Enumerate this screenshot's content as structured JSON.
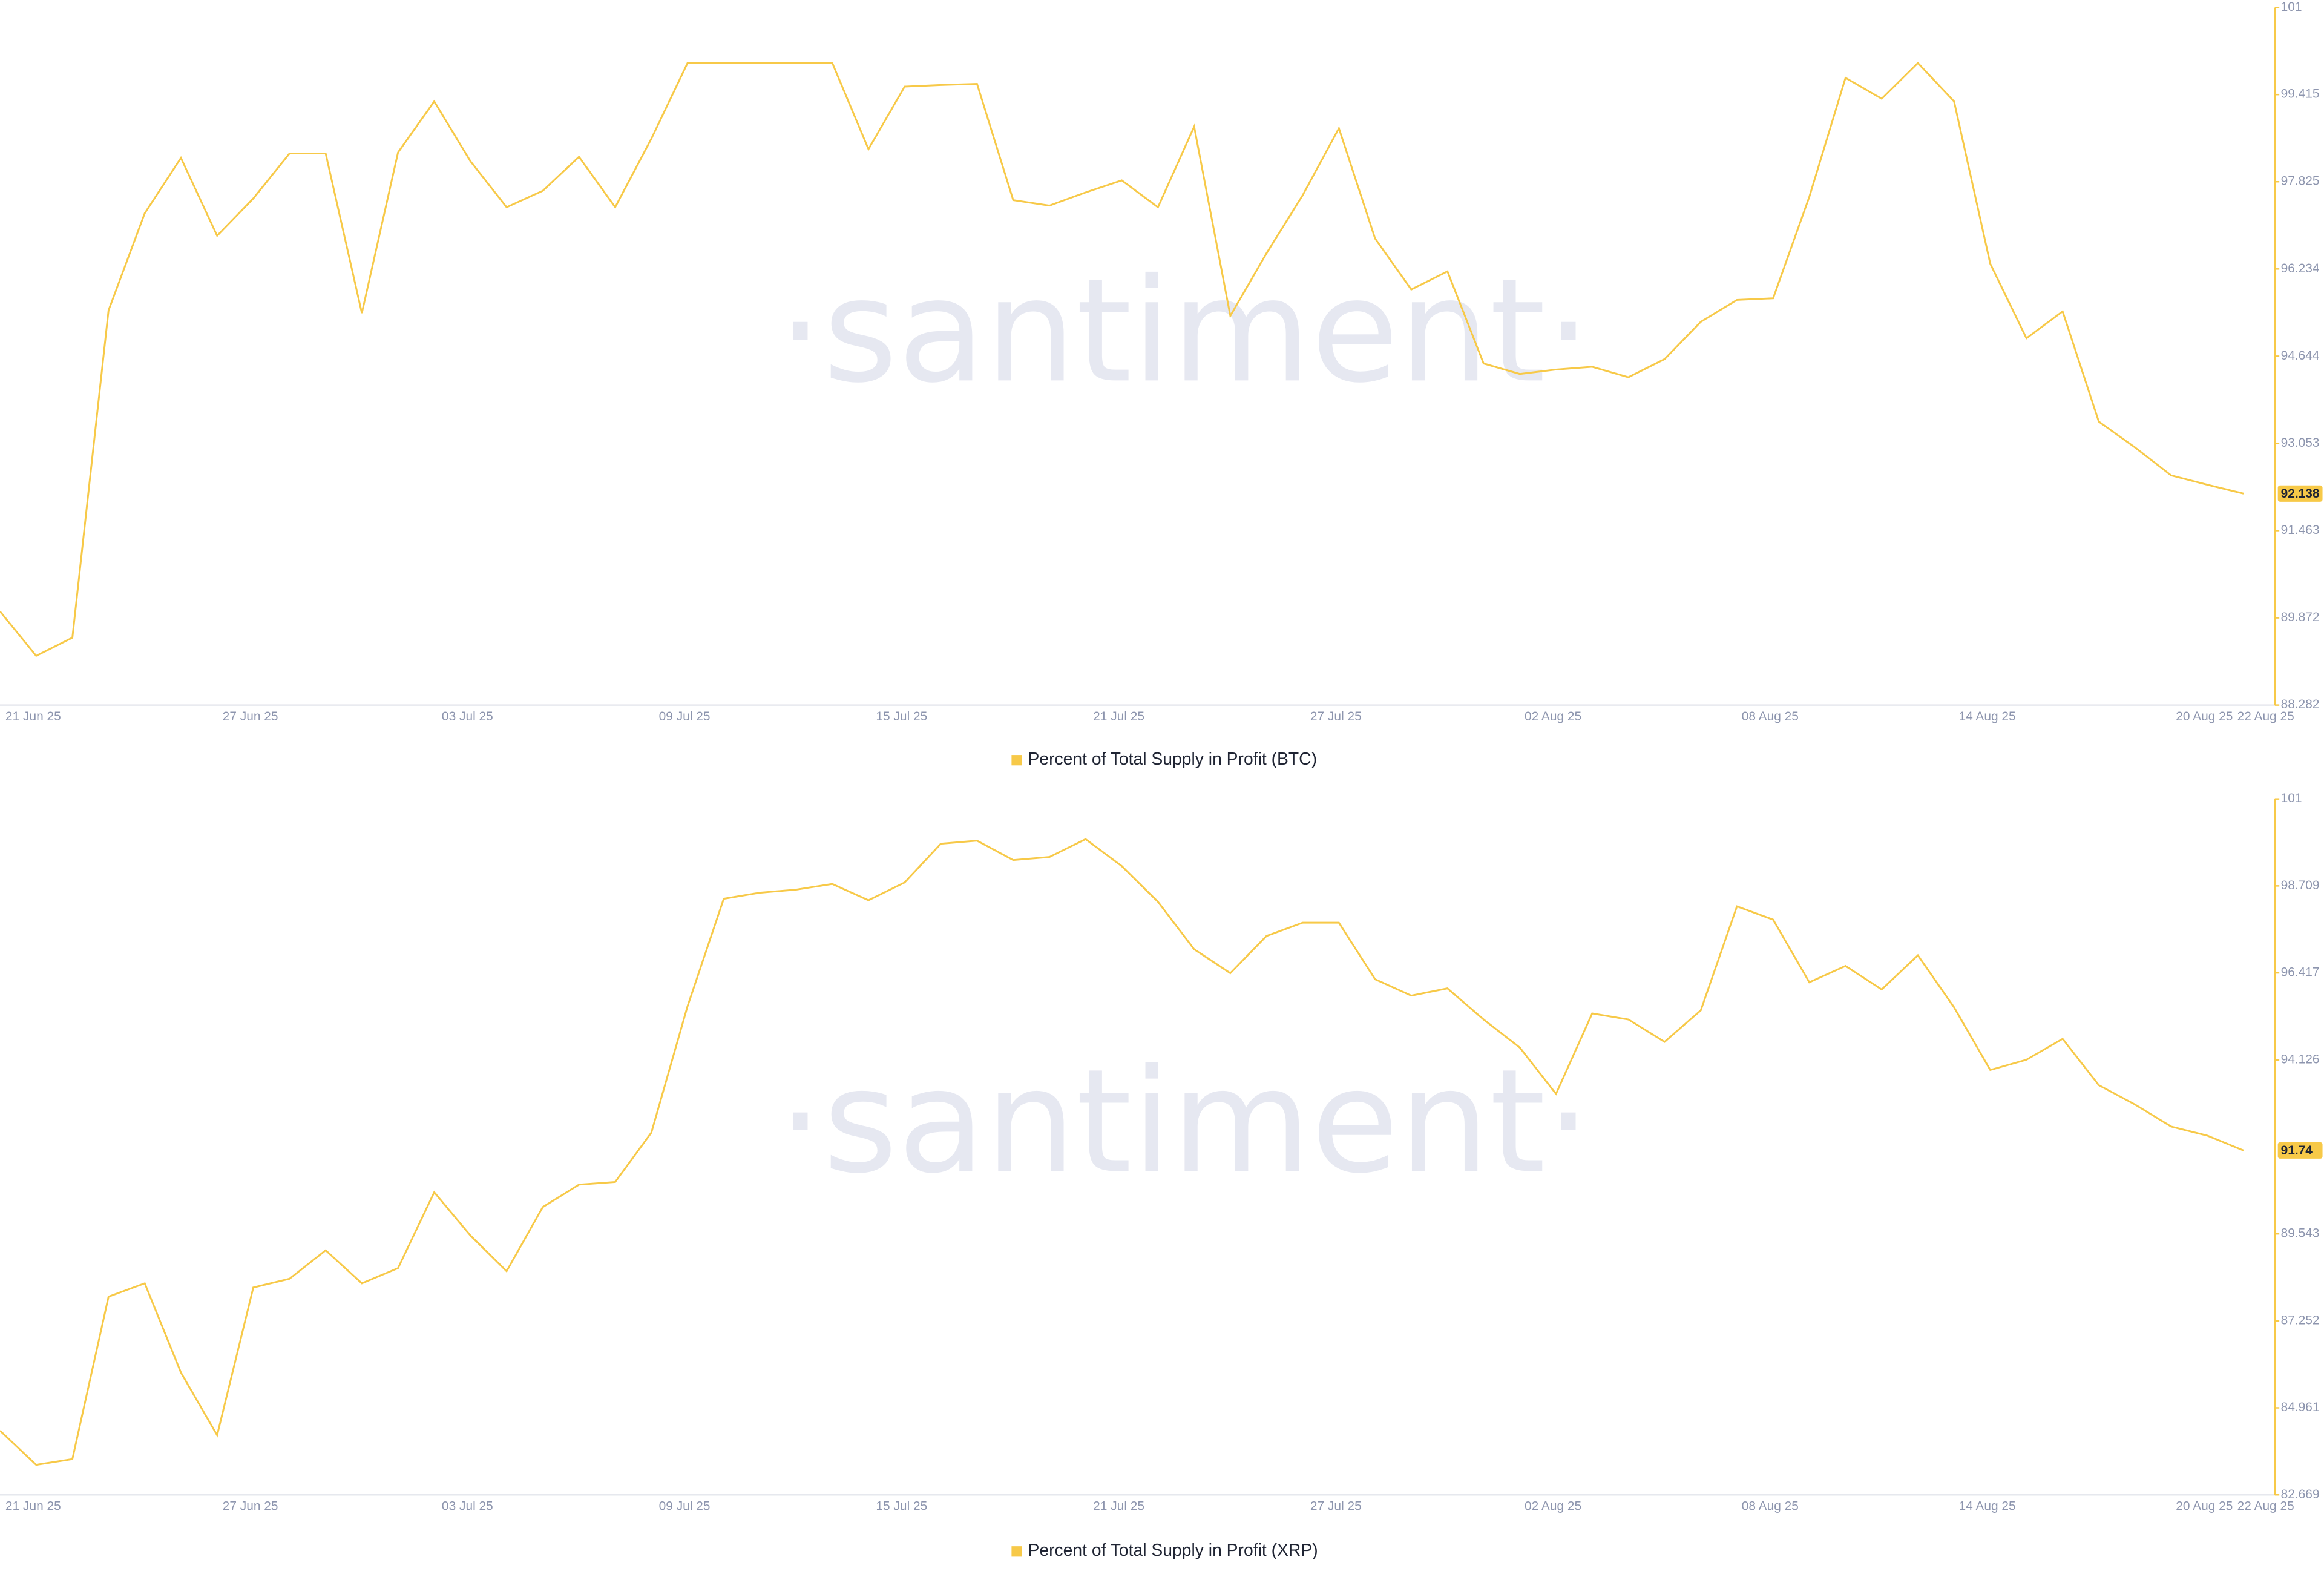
{
  "chart_data": [
    {
      "type": "line",
      "watermark": "·santiment·",
      "x": [
        "2025-06-20",
        "2025-06-21",
        "2025-06-22",
        "2025-06-23",
        "2025-06-24",
        "2025-06-25",
        "2025-06-26",
        "2025-06-27",
        "2025-06-28",
        "2025-06-29",
        "2025-06-30",
        "2025-07-01",
        "2025-07-02",
        "2025-07-03",
        "2025-07-04",
        "2025-07-05",
        "2025-07-06",
        "2025-07-07",
        "2025-07-08",
        "2025-07-09",
        "2025-07-10",
        "2025-07-11",
        "2025-07-12",
        "2025-07-13",
        "2025-07-14",
        "2025-07-15",
        "2025-07-16",
        "2025-07-17",
        "2025-07-18",
        "2025-07-19",
        "2025-07-20",
        "2025-07-21",
        "2025-07-22",
        "2025-07-23",
        "2025-07-24",
        "2025-07-25",
        "2025-07-26",
        "2025-07-27",
        "2025-07-28",
        "2025-07-29",
        "2025-07-30",
        "2025-07-31",
        "2025-08-01",
        "2025-08-02",
        "2025-08-03",
        "2025-08-04",
        "2025-08-05",
        "2025-08-06",
        "2025-08-07",
        "2025-08-08",
        "2025-08-09",
        "2025-08-10",
        "2025-08-11",
        "2025-08-12",
        "2025-08-13",
        "2025-08-14",
        "2025-08-15",
        "2025-08-16",
        "2025-08-17",
        "2025-08-18",
        "2025-08-19",
        "2025-08-20",
        "2025-08-21"
      ],
      "series": [
        {
          "name": "Percent of Total Supply in Profit (BTC)",
          "color": "#f7c948",
          "values": [
            89.99,
            89.18,
            89.51,
            95.48,
            97.25,
            98.26,
            96.84,
            97.52,
            98.34,
            98.34,
            95.43,
            98.36,
            99.29,
            98.2,
            97.36,
            97.66,
            98.28,
            97.36,
            98.61,
            99.99,
            99.99,
            99.99,
            99.99,
            99.99,
            98.42,
            99.56,
            99.59,
            99.61,
            97.49,
            97.39,
            97.63,
            97.85,
            97.36,
            98.83,
            95.38,
            96.52,
            97.58,
            98.8,
            96.79,
            95.86,
            96.19,
            94.51,
            94.32,
            94.4,
            94.45,
            94.26,
            94.59,
            95.27,
            95.67,
            95.7,
            97.55,
            99.72,
            99.34,
            99.99,
            99.29,
            96.33,
            94.97,
            95.46,
            93.45,
            92.98,
            92.47,
            92.3,
            92.138
          ]
        }
      ],
      "ylim": [
        88.282,
        101
      ],
      "yticks": [
        88.282,
        89.872,
        91.463,
        93.053,
        94.644,
        96.234,
        97.825,
        99.415,
        101
      ],
      "xticks": [
        {
          "value": "2025-06-21",
          "label": "21 Jun 25"
        },
        {
          "value": "2025-06-27",
          "label": "27 Jun 25"
        },
        {
          "value": "2025-07-03",
          "label": "03 Jul 25"
        },
        {
          "value": "2025-07-09",
          "label": "09 Jul 25"
        },
        {
          "value": "2025-07-15",
          "label": "15 Jul 25"
        },
        {
          "value": "2025-07-21",
          "label": "21 Jul 25"
        },
        {
          "value": "2025-07-27",
          "label": "27 Jul 25"
        },
        {
          "value": "2025-08-02",
          "label": "02 Aug 25"
        },
        {
          "value": "2025-08-08",
          "label": "08 Aug 25"
        },
        {
          "value": "2025-08-14",
          "label": "14 Aug 25"
        },
        {
          "value": "2025-08-20",
          "label": "20 Aug 25"
        },
        {
          "value": "2025-08-22",
          "label": "22 Aug 25"
        }
      ]
    },
    {
      "type": "line",
      "watermark": "·santiment·",
      "x": [
        "2025-06-20",
        "2025-06-21",
        "2025-06-22",
        "2025-06-23",
        "2025-06-24",
        "2025-06-25",
        "2025-06-26",
        "2025-06-27",
        "2025-06-28",
        "2025-06-29",
        "2025-06-30",
        "2025-07-01",
        "2025-07-02",
        "2025-07-03",
        "2025-07-04",
        "2025-07-05",
        "2025-07-06",
        "2025-07-07",
        "2025-07-08",
        "2025-07-09",
        "2025-07-10",
        "2025-07-11",
        "2025-07-12",
        "2025-07-13",
        "2025-07-14",
        "2025-07-15",
        "2025-07-16",
        "2025-07-17",
        "2025-07-18",
        "2025-07-19",
        "2025-07-20",
        "2025-07-21",
        "2025-07-22",
        "2025-07-23",
        "2025-07-24",
        "2025-07-25",
        "2025-07-26",
        "2025-07-27",
        "2025-07-28",
        "2025-07-29",
        "2025-07-30",
        "2025-07-31",
        "2025-08-01",
        "2025-08-02",
        "2025-08-03",
        "2025-08-04",
        "2025-08-05",
        "2025-08-06",
        "2025-08-07",
        "2025-08-08",
        "2025-08-09",
        "2025-08-10",
        "2025-08-11",
        "2025-08-12",
        "2025-08-13",
        "2025-08-14",
        "2025-08-15",
        "2025-08-16",
        "2025-08-17",
        "2025-08-18",
        "2025-08-19",
        "2025-08-20",
        "2025-08-21"
      ],
      "series": [
        {
          "name": "Percent of Total Supply in Profit (XRP)",
          "color": "#f7c948",
          "values": [
            84.36,
            83.46,
            83.61,
            87.89,
            88.24,
            85.89,
            84.24,
            88.13,
            88.36,
            89.11,
            88.24,
            88.64,
            90.64,
            89.5,
            88.56,
            90.25,
            90.84,
            90.91,
            92.21,
            95.54,
            98.37,
            98.53,
            98.61,
            98.76,
            98.33,
            98.8,
            99.82,
            99.9,
            99.39,
            99.47,
            99.94,
            99.23,
            98.29,
            97.04,
            96.41,
            97.39,
            97.74,
            97.74,
            96.25,
            95.82,
            96.01,
            95.19,
            94.45,
            93.23,
            95.35,
            95.19,
            94.6,
            95.43,
            98.17,
            97.82,
            96.17,
            96.6,
            95.98,
            96.88,
            95.51,
            93.86,
            94.13,
            94.68,
            93.46,
            92.95,
            92.37,
            92.13,
            91.74
          ]
        }
      ],
      "ylim": [
        82.669,
        101
      ],
      "yticks": [
        82.669,
        84.961,
        87.252,
        89.543,
        94.126,
        96.417,
        98.709,
        101
      ],
      "xticks": [
        {
          "value": "2025-06-21",
          "label": "21 Jun 25"
        },
        {
          "value": "2025-06-27",
          "label": "27 Jun 25"
        },
        {
          "value": "2025-07-03",
          "label": "03 Jul 25"
        },
        {
          "value": "2025-07-09",
          "label": "09 Jul 25"
        },
        {
          "value": "2025-07-15",
          "label": "15 Jul 25"
        },
        {
          "value": "2025-07-21",
          "label": "21 Jul 25"
        },
        {
          "value": "2025-07-27",
          "label": "27 Jul 25"
        },
        {
          "value": "2025-08-02",
          "label": "02 Aug 25"
        },
        {
          "value": "2025-08-08",
          "label": "08 Aug 25"
        },
        {
          "value": "2025-08-14",
          "label": "14 Aug 25"
        },
        {
          "value": "2025-08-20",
          "label": "20 Aug 25"
        },
        {
          "value": "2025-08-22",
          "label": "22 Aug 25"
        }
      ]
    }
  ]
}
